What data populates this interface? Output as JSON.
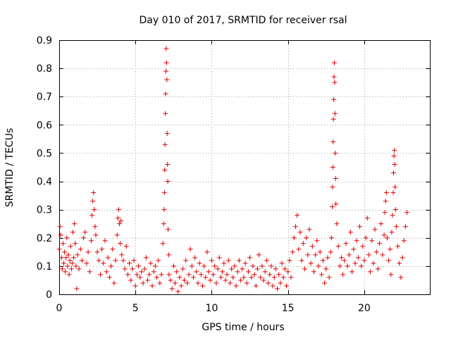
{
  "chart_data": {
    "type": "scatter",
    "title": "Day 010 of 2017, SRMTID for receiver rsal",
    "xlabel": "GPS time / hours",
    "ylabel": "SRMTID / TECUs",
    "xlim": [
      0,
      24.3
    ],
    "ylim": [
      0,
      0.9
    ],
    "xticks": [
      0,
      5,
      10,
      15,
      20
    ],
    "yticks": [
      0,
      0.1,
      0.2,
      0.3,
      0.4,
      0.5,
      0.6,
      0.7,
      0.8,
      0.9
    ],
    "xtick_labels": [
      "0",
      "5",
      "10",
      "15",
      "20"
    ],
    "ytick_labels": [
      "0",
      "0.1",
      "0.2",
      "0.3",
      "0.4",
      "0.5",
      "0.6",
      "0.7",
      "0.8",
      "0.9"
    ],
    "grid": true,
    "marker": "+",
    "color": "#e00000",
    "series": [
      {
        "name": "SRMTID",
        "points": [
          [
            0.0,
            0.16
          ],
          [
            0.05,
            0.24
          ],
          [
            0.1,
            0.21
          ],
          [
            0.15,
            0.13
          ],
          [
            0.2,
            0.09
          ],
          [
            0.25,
            0.18
          ],
          [
            0.3,
            0.11
          ],
          [
            0.35,
            0.15
          ],
          [
            0.4,
            0.08
          ],
          [
            0.45,
            0.13
          ],
          [
            0.5,
            0.2
          ],
          [
            0.55,
            0.1
          ],
          [
            0.6,
            0.14
          ],
          [
            0.65,
            0.07
          ],
          [
            0.7,
            0.12
          ],
          [
            0.75,
            0.17
          ],
          [
            0.8,
            0.09
          ],
          [
            0.85,
            0.11
          ],
          [
            0.9,
            0.22
          ],
          [
            0.95,
            0.13
          ],
          [
            1.0,
            0.25
          ],
          [
            1.05,
            0.18
          ],
          [
            1.1,
            0.1
          ],
          [
            1.15,
            0.02
          ],
          [
            1.2,
            0.14
          ],
          [
            1.3,
            0.09
          ],
          [
            1.4,
            0.16
          ],
          [
            1.5,
            0.12
          ],
          [
            1.6,
            0.2
          ],
          [
            1.7,
            0.22
          ],
          [
            1.8,
            0.11
          ],
          [
            1.9,
            0.15
          ],
          [
            2.0,
            0.08
          ],
          [
            2.1,
            0.19
          ],
          [
            2.15,
            0.28
          ],
          [
            2.2,
            0.33
          ],
          [
            2.25,
            0.36
          ],
          [
            2.3,
            0.3
          ],
          [
            2.35,
            0.24
          ],
          [
            2.4,
            0.21
          ],
          [
            2.5,
            0.15
          ],
          [
            2.6,
            0.12
          ],
          [
            2.7,
            0.07
          ],
          [
            2.8,
            0.16
          ],
          [
            2.9,
            0.11
          ],
          [
            3.0,
            0.19
          ],
          [
            3.1,
            0.08
          ],
          [
            3.2,
            0.13
          ],
          [
            3.3,
            0.06
          ],
          [
            3.4,
            0.1
          ],
          [
            3.5,
            0.16
          ],
          [
            3.6,
            0.04
          ],
          [
            3.7,
            0.12
          ],
          [
            3.8,
            0.21
          ],
          [
            3.85,
            0.27
          ],
          [
            3.9,
            0.3
          ],
          [
            3.95,
            0.25
          ],
          [
            4.0,
            0.18
          ],
          [
            4.05,
            0.26
          ],
          [
            4.1,
            0.14
          ],
          [
            4.2,
            0.12
          ],
          [
            4.3,
            0.09
          ],
          [
            4.4,
            0.17
          ],
          [
            4.5,
            0.07
          ],
          [
            4.6,
            0.11
          ],
          [
            4.7,
            0.05
          ],
          [
            4.8,
            0.09
          ],
          [
            4.9,
            0.12
          ],
          [
            5.0,
            0.03
          ],
          [
            5.1,
            0.07
          ],
          [
            5.2,
            0.1
          ],
          [
            5.3,
            0.06
          ],
          [
            5.4,
            0.08
          ],
          [
            5.5,
            0.04
          ],
          [
            5.6,
            0.09
          ],
          [
            5.7,
            0.13
          ],
          [
            5.8,
            0.05
          ],
          [
            5.9,
            0.07
          ],
          [
            6.0,
            0.11
          ],
          [
            6.1,
            0.03
          ],
          [
            6.2,
            0.08
          ],
          [
            6.3,
            0.1
          ],
          [
            6.4,
            0.06
          ],
          [
            6.5,
            0.12
          ],
          [
            6.6,
            0.04
          ],
          [
            6.7,
            0.07
          ],
          [
            6.8,
            0.18
          ],
          [
            6.85,
            0.25
          ],
          [
            6.88,
            0.3
          ],
          [
            6.9,
            0.36
          ],
          [
            6.92,
            0.44
          ],
          [
            6.94,
            0.53
          ],
          [
            6.96,
            0.64
          ],
          [
            6.98,
            0.71
          ],
          [
            7.0,
            0.79
          ],
          [
            7.02,
            0.87
          ],
          [
            7.04,
            0.82
          ],
          [
            7.06,
            0.76
          ],
          [
            7.08,
            0.57
          ],
          [
            7.1,
            0.46
          ],
          [
            7.12,
            0.4
          ],
          [
            7.14,
            0.23
          ],
          [
            7.18,
            0.14
          ],
          [
            7.2,
            0.07
          ],
          [
            7.3,
            0.05
          ],
          [
            7.4,
            0.02
          ],
          [
            7.5,
            0.1
          ],
          [
            7.6,
            0.04
          ],
          [
            7.7,
            0.08
          ],
          [
            7.8,
            0.01
          ],
          [
            7.9,
            0.06
          ],
          [
            8.0,
            0.03
          ],
          [
            8.1,
            0.09
          ],
          [
            8.2,
            0.05
          ],
          [
            8.3,
            0.12
          ],
          [
            8.4,
            0.04
          ],
          [
            8.5,
            0.07
          ],
          [
            8.6,
            0.16
          ],
          [
            8.7,
            0.1
          ],
          [
            8.8,
            0.06
          ],
          [
            8.9,
            0.13
          ],
          [
            9.0,
            0.08
          ],
          [
            9.1,
            0.04
          ],
          [
            9.2,
            0.11
          ],
          [
            9.3,
            0.07
          ],
          [
            9.4,
            0.03
          ],
          [
            9.5,
            0.1
          ],
          [
            9.6,
            0.06
          ],
          [
            9.7,
            0.15
          ],
          [
            9.8,
            0.08
          ],
          [
            9.9,
            0.05
          ],
          [
            10.0,
            0.12
          ],
          [
            10.1,
            0.07
          ],
          [
            10.2,
            0.1
          ],
          [
            10.3,
            0.04
          ],
          [
            10.4,
            0.09
          ],
          [
            10.5,
            0.13
          ],
          [
            10.6,
            0.06
          ],
          [
            10.7,
            0.08
          ],
          [
            10.8,
            0.11
          ],
          [
            10.9,
            0.05
          ],
          [
            11.0,
            0.07
          ],
          [
            11.1,
            0.12
          ],
          [
            11.2,
            0.04
          ],
          [
            11.3,
            0.09
          ],
          [
            11.4,
            0.06
          ],
          [
            11.5,
            0.1
          ],
          [
            11.6,
            0.03
          ],
          [
            11.7,
            0.08
          ],
          [
            11.8,
            0.12
          ],
          [
            11.9,
            0.05
          ],
          [
            12.0,
            0.09
          ],
          [
            12.1,
            0.06
          ],
          [
            12.2,
            0.11
          ],
          [
            12.3,
            0.04
          ],
          [
            12.4,
            0.08
          ],
          [
            12.5,
            0.13
          ],
          [
            12.6,
            0.06
          ],
          [
            12.7,
            0.1
          ],
          [
            12.8,
            0.07
          ],
          [
            12.9,
            0.03
          ],
          [
            13.0,
            0.09
          ],
          [
            13.1,
            0.14
          ],
          [
            13.2,
            0.06
          ],
          [
            13.3,
            0.1
          ],
          [
            13.4,
            0.05
          ],
          [
            13.5,
            0.08
          ],
          [
            13.6,
            0.12
          ],
          [
            13.7,
            0.04
          ],
          [
            13.8,
            0.07
          ],
          [
            13.9,
            0.1
          ],
          [
            14.0,
            0.03
          ],
          [
            14.1,
            0.06
          ],
          [
            14.2,
            0.09
          ],
          [
            14.3,
            0.02
          ],
          [
            14.4,
            0.07
          ],
          [
            14.5,
            0.04
          ],
          [
            14.6,
            0.11
          ],
          [
            14.7,
            0.06
          ],
          [
            14.8,
            0.09
          ],
          [
            14.9,
            0.03
          ],
          [
            15.0,
            0.08
          ],
          [
            15.1,
            0.12
          ],
          [
            15.2,
            0.06
          ],
          [
            15.3,
            0.15
          ],
          [
            15.4,
            0.2
          ],
          [
            15.5,
            0.24
          ],
          [
            15.6,
            0.28
          ],
          [
            15.7,
            0.16
          ],
          [
            15.8,
            0.22
          ],
          [
            15.9,
            0.12
          ],
          [
            16.0,
            0.18
          ],
          [
            16.1,
            0.09
          ],
          [
            16.2,
            0.2
          ],
          [
            16.3,
            0.14
          ],
          [
            16.4,
            0.23
          ],
          [
            16.5,
            0.11
          ],
          [
            16.6,
            0.17
          ],
          [
            16.7,
            0.08
          ],
          [
            16.8,
            0.14
          ],
          [
            16.9,
            0.19
          ],
          [
            17.0,
            0.1
          ],
          [
            17.1,
            0.15
          ],
          [
            17.2,
            0.07
          ],
          [
            17.3,
            0.12
          ],
          [
            17.4,
            0.04
          ],
          [
            17.5,
            0.09
          ],
          [
            17.6,
            0.13
          ],
          [
            17.7,
            0.06
          ],
          [
            17.8,
            0.15
          ],
          [
            17.85,
            0.2
          ],
          [
            17.9,
            0.31
          ],
          [
            17.92,
            0.38
          ],
          [
            17.94,
            0.45
          ],
          [
            17.96,
            0.54
          ],
          [
            17.98,
            0.62
          ],
          [
            18.0,
            0.69
          ],
          [
            18.02,
            0.77
          ],
          [
            18.04,
            0.82
          ],
          [
            18.06,
            0.75
          ],
          [
            18.08,
            0.64
          ],
          [
            18.1,
            0.5
          ],
          [
            18.12,
            0.41
          ],
          [
            18.14,
            0.32
          ],
          [
            18.2,
            0.25
          ],
          [
            18.3,
            0.17
          ],
          [
            18.4,
            0.1
          ],
          [
            18.5,
            0.13
          ],
          [
            18.6,
            0.07
          ],
          [
            18.7,
            0.12
          ],
          [
            18.8,
            0.18
          ],
          [
            18.9,
            0.1
          ],
          [
            19.0,
            0.14
          ],
          [
            19.1,
            0.22
          ],
          [
            19.2,
            0.08
          ],
          [
            19.3,
            0.16
          ],
          [
            19.4,
            0.11
          ],
          [
            19.5,
            0.19
          ],
          [
            19.6,
            0.13
          ],
          [
            19.7,
            0.24
          ],
          [
            19.8,
            0.1
          ],
          [
            19.9,
            0.17
          ],
          [
            20.0,
            0.12
          ],
          [
            20.1,
            0.2
          ],
          [
            20.2,
            0.27
          ],
          [
            20.3,
            0.14
          ],
          [
            20.4,
            0.08
          ],
          [
            20.5,
            0.19
          ],
          [
            20.6,
            0.11
          ],
          [
            20.7,
            0.23
          ],
          [
            20.8,
            0.15
          ],
          [
            20.9,
            0.09
          ],
          [
            21.0,
            0.18
          ],
          [
            21.1,
            0.25
          ],
          [
            21.2,
            0.14
          ],
          [
            21.3,
            0.21
          ],
          [
            21.35,
            0.29
          ],
          [
            21.4,
            0.33
          ],
          [
            21.45,
            0.36
          ],
          [
            21.5,
            0.2
          ],
          [
            21.6,
            0.12
          ],
          [
            21.7,
            0.16
          ],
          [
            21.75,
            0.07
          ],
          [
            21.8,
            0.22
          ],
          [
            21.85,
            0.28
          ],
          [
            21.9,
            0.36
          ],
          [
            21.92,
            0.43
          ],
          [
            21.95,
            0.49
          ],
          [
            21.98,
            0.51
          ],
          [
            22.0,
            0.46
          ],
          [
            22.02,
            0.38
          ],
          [
            22.05,
            0.3
          ],
          [
            22.1,
            0.24
          ],
          [
            22.2,
            0.17
          ],
          [
            22.3,
            0.11
          ],
          [
            22.4,
            0.06
          ],
          [
            22.5,
            0.13
          ],
          [
            22.6,
            0.19
          ],
          [
            22.7,
            0.24
          ],
          [
            22.8,
            0.29
          ]
        ]
      }
    ]
  }
}
